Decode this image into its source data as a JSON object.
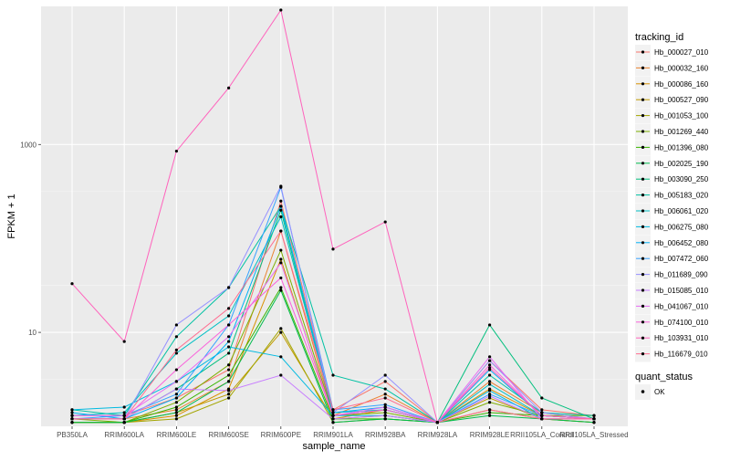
{
  "chart_data": {
    "type": "line",
    "y_scale": "log10",
    "xlabel": "sample_name",
    "ylabel": "FPKM + 1",
    "x": [
      "PB350LA",
      "RRIM600LA",
      "RRIM600LE",
      "RRIM600SE",
      "RRIM600PE",
      "RRIM901LA",
      "RRIM928BA",
      "RRIM928LA",
      "RRIM928LE",
      "RRII105LA_Control",
      "RRII105LA_Stressed"
    ],
    "y_ticks": [
      10,
      1000
    ],
    "ylim": [
      1,
      27000
    ],
    "grid": true,
    "legend": {
      "color_title": "tracking_id",
      "shape_title": "quant_status",
      "shape_entries": [
        "OK"
      ],
      "placement": "right"
    },
    "series": [
      {
        "name": "Hb_000027_010",
        "color": "#F8766D",
        "values": [
          1.3,
          1.3,
          2,
          4,
          250,
          1.5,
          3,
          1.1,
          5,
          1.5,
          1.3
        ]
      },
      {
        "name": "Hb_000032_160",
        "color": "#EA8331",
        "values": [
          1.2,
          1.2,
          1.5,
          3,
          120,
          1.3,
          2.2,
          1.1,
          3,
          1.4,
          1.2
        ]
      },
      {
        "name": "Hb_000086_160",
        "color": "#D89000",
        "values": [
          1.1,
          1.1,
          1.3,
          2.5,
          60,
          1.2,
          1.5,
          1.1,
          2.5,
          1.3,
          1.2
        ]
      },
      {
        "name": "Hb_000527_090",
        "color": "#C09B00",
        "values": [
          1.1,
          1.1,
          1.4,
          2.2,
          10,
          1.2,
          1.3,
          1.1,
          2.0,
          1.2,
          1.1
        ]
      },
      {
        "name": "Hb_001053_100",
        "color": "#A3A500",
        "values": [
          1.1,
          1.1,
          1.2,
          2.0,
          11,
          1.1,
          1.2,
          1.1,
          1.5,
          1.2,
          1.1
        ]
      },
      {
        "name": "Hb_001269_440",
        "color": "#7CAE00",
        "values": [
          1.2,
          1.1,
          1.8,
          4.5,
          75,
          1.3,
          1.4,
          1.1,
          1.8,
          1.3,
          1.3
        ]
      },
      {
        "name": "Hb_001396_080",
        "color": "#39B600",
        "values": [
          1.1,
          1.1,
          1.6,
          3.5,
          30,
          1.2,
          1.2,
          1.1,
          1.4,
          1.3,
          1.2
        ]
      },
      {
        "name": "Hb_002025_190",
        "color": "#00BB4E",
        "values": [
          1.1,
          1.1,
          1.4,
          3.0,
          28,
          1.1,
          1.2,
          1.1,
          1.3,
          1.2,
          1.1
        ]
      },
      {
        "name": "Hb_003090_250",
        "color": "#00BF7D",
        "values": [
          1.2,
          1.2,
          2.5,
          6,
          200,
          1.3,
          1.5,
          1.1,
          12,
          2.0,
          1.2
        ]
      },
      {
        "name": "Hb_005183_020",
        "color": "#00C1A3",
        "values": [
          1.5,
          1.3,
          9,
          30,
          220,
          3.5,
          2.5,
          1.1,
          3.5,
          1.4,
          1.3
        ]
      },
      {
        "name": "Hb_006061_020",
        "color": "#00BFC4",
        "values": [
          1.3,
          1.4,
          6,
          15,
          170,
          1.4,
          1.5,
          1.1,
          2.8,
          1.3,
          1.2
        ]
      },
      {
        "name": "Hb_006275_080",
        "color": "#00BAE0",
        "values": [
          1.5,
          1.6,
          3,
          7,
          5.5,
          1.3,
          1.3,
          1.1,
          2.4,
          1.2,
          1.2
        ]
      },
      {
        "name": "Hb_006452_080",
        "color": "#00B0F6",
        "values": [
          1.4,
          1.2,
          2,
          8,
          220,
          1.4,
          1.6,
          1.1,
          4.0,
          1.3,
          1.2
        ]
      },
      {
        "name": "Hb_007472_060",
        "color": "#35A2FF",
        "values": [
          1.2,
          1.3,
          2.2,
          12,
          350,
          1.5,
          1.7,
          1.1,
          2.2,
          1.3,
          1.2
        ]
      },
      {
        "name": "Hb_011689_090",
        "color": "#9590FF",
        "values": [
          1.2,
          1.2,
          12,
          30,
          360,
          1.4,
          3.5,
          1.1,
          5,
          1.4,
          1.2
        ]
      },
      {
        "name": "Hb_015085_010",
        "color": "#C77CFF",
        "values": [
          1.2,
          1.2,
          2.5,
          2.4,
          3.5,
          1.2,
          1.3,
          1.1,
          2.1,
          1.2,
          1.2
        ]
      },
      {
        "name": "Hb_041067_010",
        "color": "#E76BF3",
        "values": [
          1.3,
          1.3,
          3,
          9,
          55,
          1.3,
          1.6,
          1.1,
          5.5,
          1.2,
          1.2
        ]
      },
      {
        "name": "Hb_074100_010",
        "color": "#FA62DB",
        "values": [
          1.2,
          1.2,
          4,
          12,
          38,
          1.3,
          1.5,
          1.1,
          4.5,
          1.3,
          1.2
        ]
      },
      {
        "name": "Hb_103931_010",
        "color": "#FF62BC",
        "values": [
          33,
          8,
          850,
          4000,
          27000,
          77,
          150,
          1.1,
          4.2,
          1.3,
          1.2
        ]
      },
      {
        "name": "Hb_116679_010",
        "color": "#FF6C90",
        "values": [
          1.2,
          1.2,
          6.5,
          18,
          120,
          1.5,
          2.0,
          1.1,
          1.5,
          1.2,
          1.2
        ]
      }
    ]
  }
}
